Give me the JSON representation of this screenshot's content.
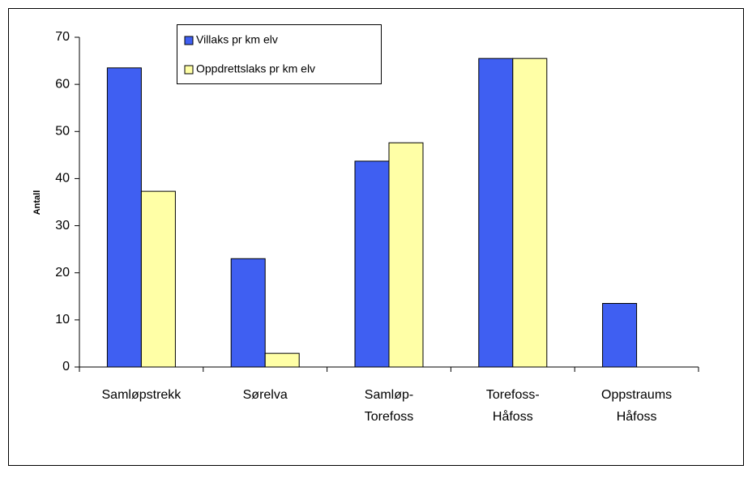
{
  "chart_data": {
    "type": "bar",
    "y_label": "Antall",
    "categories": [
      [
        "Samløpstrekk"
      ],
      [
        "Sørelva"
      ],
      [
        "Samløp-",
        "Torefoss"
      ],
      [
        "Torefoss-",
        "Håfoss"
      ],
      [
        "Oppstraums",
        "Håfoss"
      ]
    ],
    "series": [
      {
        "name": "Villaks pr km elv",
        "color": "#3f5ff2",
        "values": [
          63.5,
          23,
          43.7,
          65.5,
          13.5
        ]
      },
      {
        "name": "Oppdrettslaks pr km elv",
        "color": "#ffffa6",
        "values": [
          37.3,
          2.9,
          47.6,
          65.5,
          0
        ]
      }
    ],
    "ylim": [
      0,
      70
    ],
    "yticks": [
      0,
      10,
      20,
      30,
      40,
      50,
      60,
      70
    ]
  }
}
